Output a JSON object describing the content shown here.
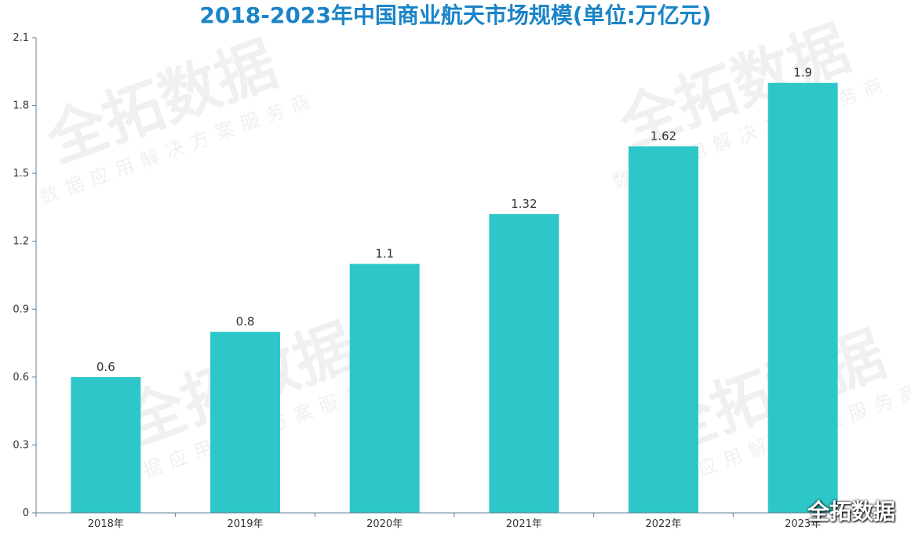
{
  "chart_data": {
    "type": "bar",
    "title": "2018-2023年中国商业航天市场规模(单位:万亿元)",
    "categories": [
      "2018年",
      "2019年",
      "2020年",
      "2021年",
      "2022年",
      "2023年"
    ],
    "values": [
      0.6,
      0.8,
      1.1,
      1.32,
      1.62,
      1.9
    ],
    "data_labels": [
      "0.6",
      "0.8",
      "1.1",
      "1.32",
      "1.62",
      "1.9"
    ],
    "ylim": [
      0,
      2.1
    ],
    "y_ticks": [
      "0",
      "0.3",
      "0.6",
      "0.9",
      "1.2",
      "1.5",
      "1.8",
      "2.1"
    ],
    "xlabel": "",
    "ylabel": "",
    "grid": false,
    "bar_color": "#2ec7c9"
  },
  "watermark": {
    "main": "全拓数据",
    "sub": "数据应用解决方案服务商",
    "logo": "全拓数据"
  }
}
